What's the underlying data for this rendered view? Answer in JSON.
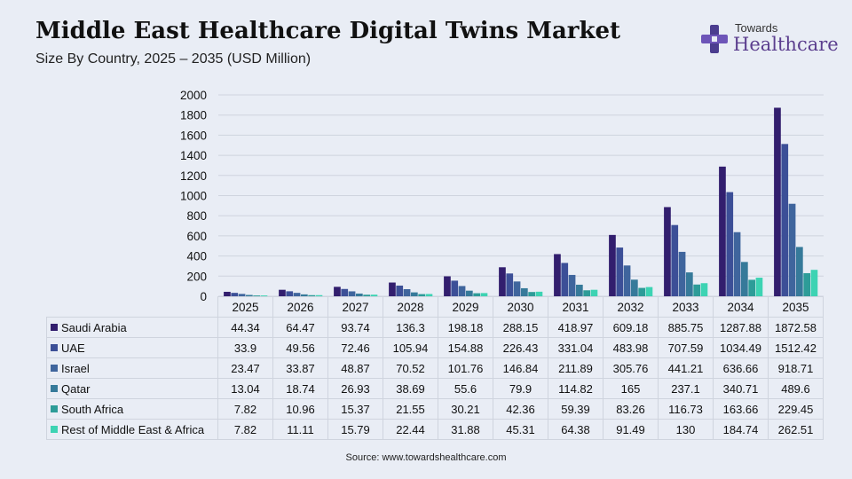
{
  "header": {
    "title": "Middle East Healthcare Digital Twins Market",
    "subtitle": "Size By Country, 2025 – 2035 (USD Million)"
  },
  "logo": {
    "top_text": "Towards",
    "main_text": "Healthcare",
    "icon": "cross-logo-icon"
  },
  "source": "Source: www.towardshealthcare.com",
  "colors": {
    "Saudi Arabia": "#321e6e",
    "UAE": "#3c4f97",
    "Israel": "#3f659d",
    "Qatar": "#367a9a",
    "South Africa": "#2d9c98",
    "Rest of Middle East & Africa": "#3dd3b3"
  },
  "chart_data": {
    "type": "bar",
    "categories": [
      "2025",
      "2026",
      "2027",
      "2028",
      "2029",
      "2030",
      "2031",
      "2032",
      "2033",
      "2034",
      "2035"
    ],
    "ylim": [
      0,
      2000
    ],
    "yticks": [
      "0",
      "200",
      "400",
      "600",
      "800",
      "1000",
      "1200",
      "1400",
      "1600",
      "1800",
      "2000"
    ],
    "grid": true,
    "legend": "table-below",
    "series": [
      {
        "name": "Saudi Arabia",
        "values": [
          44.34,
          64.47,
          93.74,
          136.3,
          198.18,
          288.15,
          418.97,
          609.18,
          885.75,
          1287.88,
          1872.58
        ]
      },
      {
        "name": "UAE",
        "values": [
          33.9,
          49.56,
          72.46,
          105.94,
          154.88,
          226.43,
          331.04,
          483.98,
          707.59,
          1034.49,
          1512.42
        ]
      },
      {
        "name": "Israel",
        "values": [
          23.47,
          33.87,
          48.87,
          70.52,
          101.76,
          146.84,
          211.89,
          305.76,
          441.21,
          636.66,
          918.71
        ]
      },
      {
        "name": "Qatar",
        "values": [
          13.04,
          18.74,
          26.93,
          38.69,
          55.6,
          79.9,
          114.82,
          165,
          237.1,
          340.71,
          489.6
        ]
      },
      {
        "name": "South Africa",
        "values": [
          7.82,
          10.96,
          15.37,
          21.55,
          30.21,
          42.36,
          59.39,
          83.26,
          116.73,
          163.66,
          229.45
        ]
      },
      {
        "name": "Rest of Middle East & Africa",
        "values": [
          7.82,
          11.11,
          15.79,
          22.44,
          31.88,
          45.31,
          64.38,
          91.49,
          130,
          184.74,
          262.51
        ]
      }
    ]
  }
}
